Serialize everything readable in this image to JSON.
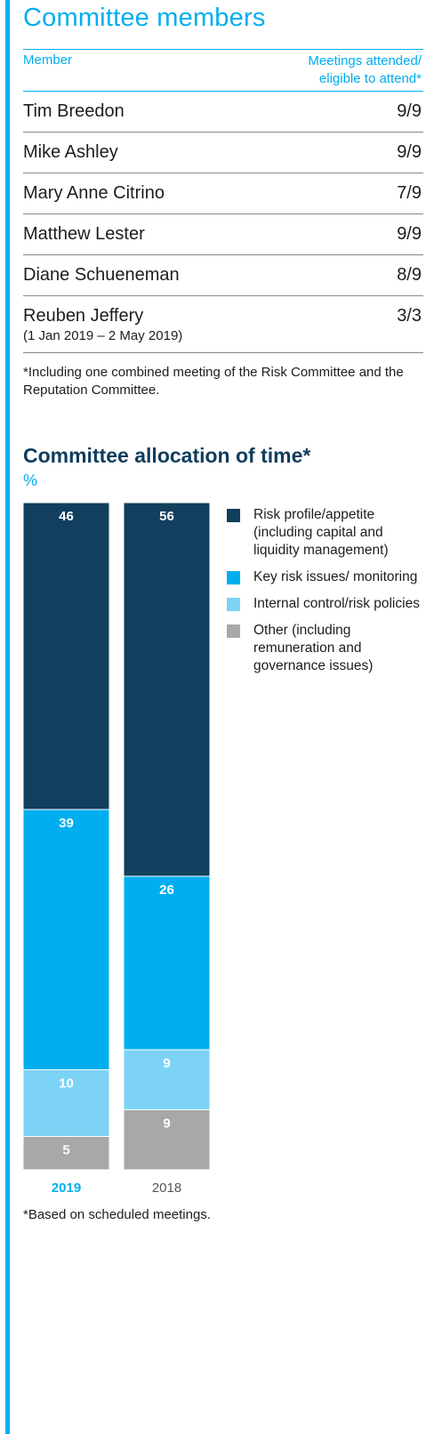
{
  "committee": {
    "title": "Committee members",
    "header": {
      "member": "Member",
      "meetings_line1": "Meetings attended/",
      "meetings_line2": "eligible to attend*"
    },
    "members": [
      {
        "name": "Tim Breedon",
        "attendance": "9/9"
      },
      {
        "name": "Mike Ashley",
        "attendance": "9/9"
      },
      {
        "name": "Mary Anne Citrino",
        "attendance": "7/9"
      },
      {
        "name": "Matthew Lester",
        "attendance": "9/9"
      },
      {
        "name": "Diane Schueneman",
        "attendance": "8/9"
      },
      {
        "name": "Reuben Jeffery",
        "note": "(1 Jan 2019 – 2 May 2019)",
        "attendance": "3/3"
      }
    ],
    "footnote": "*Including one combined meeting of the Risk Committee and the Reputation Committee."
  },
  "allocation": {
    "title": "Committee allocation of time*",
    "unit": "%",
    "footnote": "*Based on scheduled meetings."
  },
  "chart_data": {
    "type": "bar",
    "stacked": true,
    "title": "Committee allocation of time*",
    "ylabel": "%",
    "categories": [
      "2019",
      "2018"
    ],
    "category_colors": [
      "#00aeef",
      "#555555"
    ],
    "series": [
      {
        "name": "Risk profile/appetite (including capital and liquidity management)",
        "values": [
          46,
          56
        ],
        "color": "#113f5d"
      },
      {
        "name": "Key risk issues/ monitoring",
        "values": [
          39,
          26
        ],
        "color": "#00aeef"
      },
      {
        "name": "Internal control/risk policies",
        "values": [
          10,
          9
        ],
        "color": "#7dd3f5"
      },
      {
        "name": "Other (including remuneration and governance issues)",
        "values": [
          5,
          9
        ],
        "color": "#a7a8aa"
      }
    ],
    "ylim": [
      0,
      100
    ],
    "grid": false,
    "legend_position": "right"
  }
}
